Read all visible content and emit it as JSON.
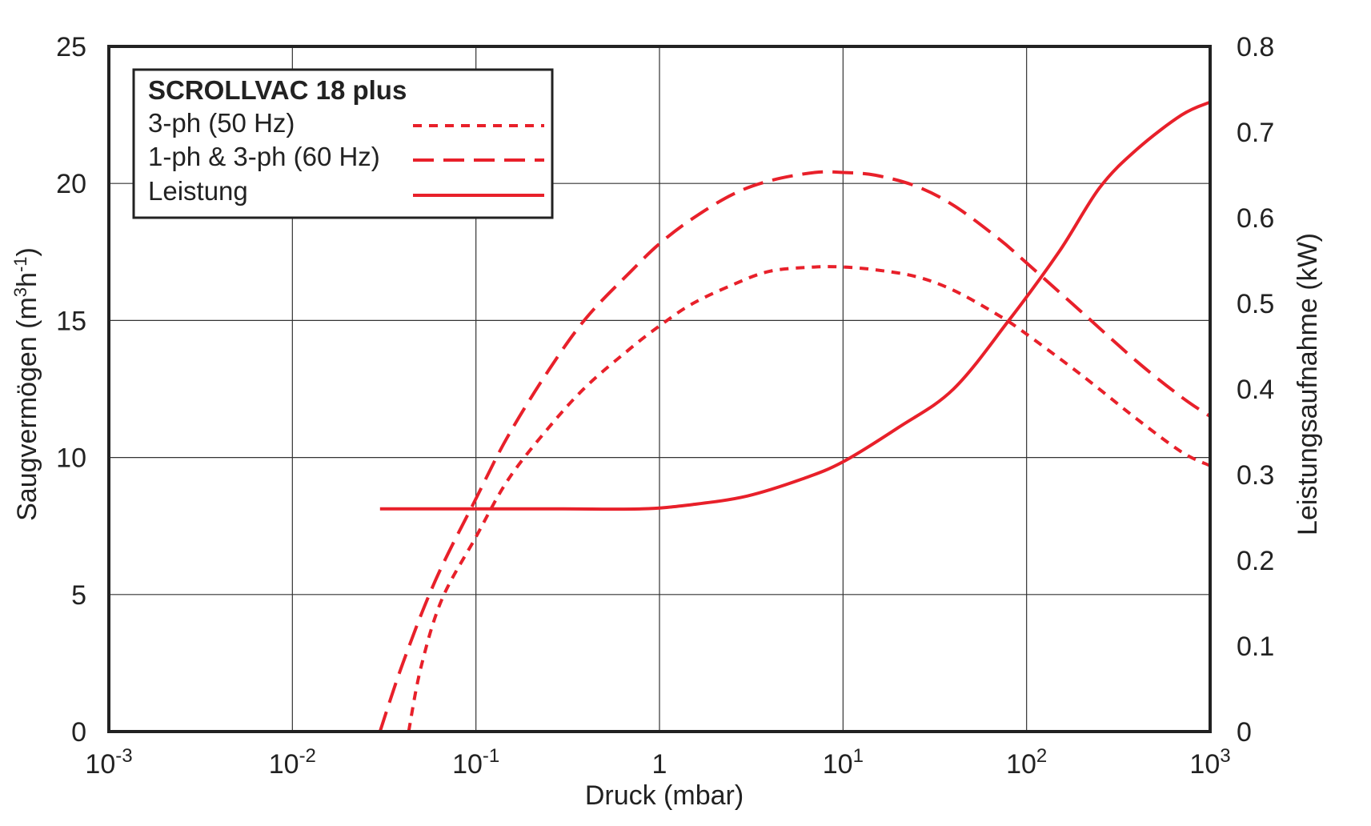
{
  "chart_data": {
    "type": "line",
    "title": "SCROLLVAC 18 plus",
    "xlabel": "Druck (mbar)",
    "ylabel": "Saugvermögen (m3h-1)",
    "ylabel_parts": {
      "a": "Saugvermögen (m",
      "sup1": "3",
      "b": "h",
      "sup2": "-1",
      "c": ")"
    },
    "y2label": "Leistungsaufnahme (kW)",
    "x_scale": "log",
    "xlim": [
      0.001,
      1000
    ],
    "ylim": [
      0,
      25
    ],
    "y2lim": [
      0,
      0.8
    ],
    "grid": true,
    "legend_position": "top-left",
    "line_color": "#e8202a",
    "x_ticks": [
      {
        "value": 0.001,
        "base": "10",
        "exp": "-3"
      },
      {
        "value": 0.01,
        "base": "10",
        "exp": "-2"
      },
      {
        "value": 0.1,
        "base": "10",
        "exp": "-1"
      },
      {
        "value": 1,
        "base": "1",
        "exp": ""
      },
      {
        "value": 10,
        "base": "10",
        "exp": "1"
      },
      {
        "value": 100,
        "base": "10",
        "exp": "2"
      },
      {
        "value": 1000,
        "base": "10",
        "exp": "3"
      }
    ],
    "y_ticks": [
      "0",
      "5",
      "10",
      "15",
      "20",
      "25"
    ],
    "y2_ticks": [
      "0",
      "0.1",
      "0.2",
      "0.3",
      "0.4",
      "0.5",
      "0.6",
      "0.7",
      "0.8"
    ],
    "series": [
      {
        "name": "3-ph (50 Hz)",
        "axis": "left",
        "dash": "dotted",
        "x": [
          0.043,
          0.05,
          0.065,
          0.1,
          0.15,
          0.25,
          0.4,
          0.7,
          1,
          1.5,
          2.5,
          4,
          7,
          10,
          15,
          25,
          40,
          70,
          100,
          200,
          400,
          700,
          1000
        ],
        "y": [
          0,
          2.3,
          4.8,
          7.1,
          9.2,
          11.1,
          12.6,
          14.0,
          14.8,
          15.6,
          16.3,
          16.8,
          16.95,
          16.95,
          16.85,
          16.6,
          16.1,
          15.2,
          14.5,
          13.0,
          11.4,
          10.2,
          9.7
        ]
      },
      {
        "name": "1-ph & 3-ph (60 Hz)",
        "axis": "left",
        "dash": "dashed",
        "x": [
          0.03,
          0.04,
          0.06,
          0.1,
          0.15,
          0.25,
          0.4,
          0.7,
          1,
          1.5,
          2.5,
          4,
          7,
          10,
          15,
          25,
          40,
          70,
          100,
          200,
          400,
          700,
          1000
        ],
        "y": [
          0,
          2.5,
          5.5,
          8.5,
          10.8,
          13.2,
          15.1,
          16.8,
          17.8,
          18.7,
          19.6,
          20.1,
          20.4,
          20.4,
          20.3,
          19.9,
          19.2,
          18.0,
          17.1,
          15.3,
          13.5,
          12.2,
          11.5
        ]
      },
      {
        "name": "Leistung",
        "axis": "right",
        "dash": "solid",
        "x": [
          0.03,
          0.1,
          0.3,
          0.8,
          1.5,
          3,
          6,
          10,
          20,
          40,
          80,
          150,
          250,
          400,
          700,
          1000
        ],
        "y": [
          0.26,
          0.26,
          0.26,
          0.26,
          0.265,
          0.275,
          0.295,
          0.315,
          0.355,
          0.4,
          0.48,
          0.56,
          0.635,
          0.68,
          0.72,
          0.735
        ]
      }
    ]
  }
}
